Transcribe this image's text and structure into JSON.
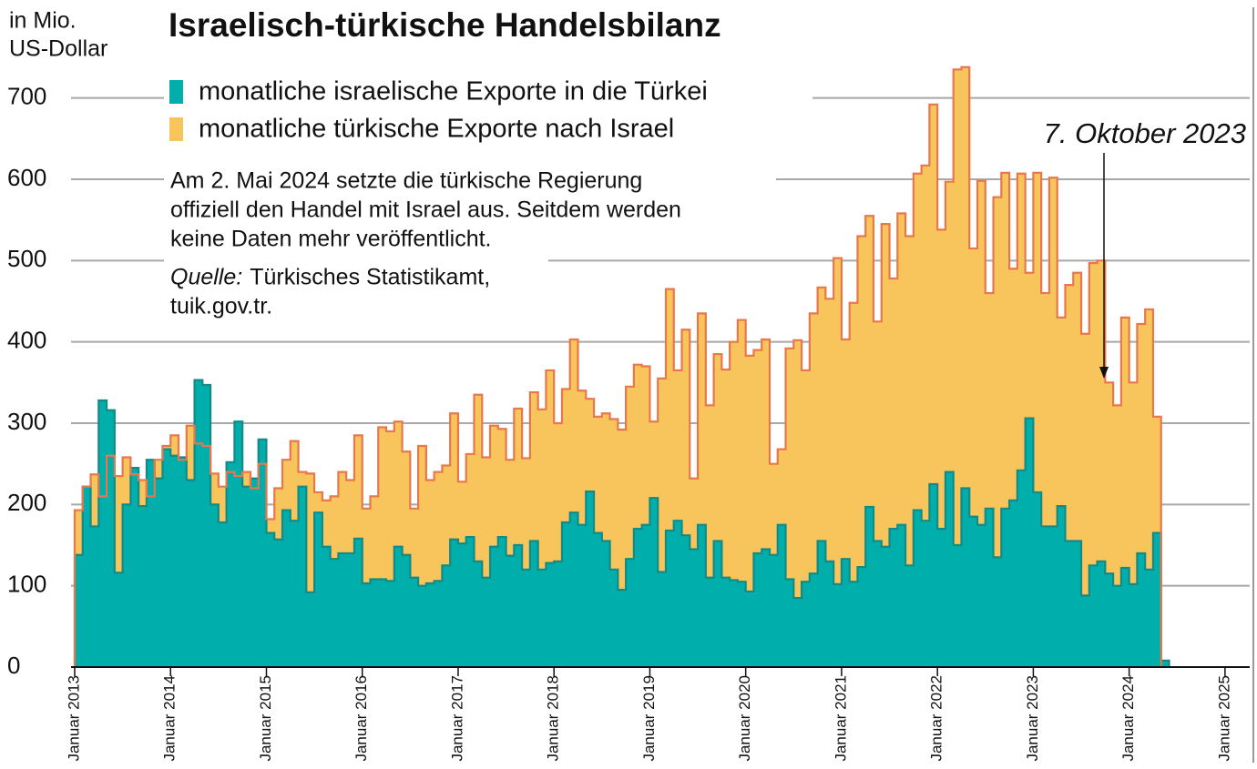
{
  "chart_data": {
    "type": "step-area",
    "title": "Israelisch-türkische Handelsbilanz",
    "ylabel": [
      "in Mio.",
      "US-Dollar"
    ],
    "note": [
      "Am 2. Mai 2024 setzte die türkische Regierung",
      "offiziell den Handel mit Israel aus. Seitdem werden",
      "keine Daten mehr veröffentlicht."
    ],
    "source": {
      "label": "Quelle:",
      "lines": [
        "Türkisches Statistikamt,",
        "tuik.gov.tr."
      ]
    },
    "annotation": "7. Oktober 2023",
    "ylim": [
      0,
      750
    ],
    "yticks": [
      0,
      100,
      200,
      300,
      400,
      500,
      600,
      700
    ],
    "grid": true,
    "categories": [
      "Januar 2013",
      null,
      null,
      null,
      null,
      null,
      null,
      null,
      null,
      null,
      null,
      null,
      "Januar 2014",
      null,
      null,
      null,
      null,
      null,
      null,
      null,
      null,
      null,
      null,
      null,
      "Januar 2015",
      null,
      null,
      null,
      null,
      null,
      null,
      null,
      null,
      null,
      null,
      null,
      "Januar 2016",
      null,
      null,
      null,
      null,
      null,
      null,
      null,
      null,
      null,
      null,
      null,
      "Januar 2017",
      null,
      null,
      null,
      null,
      null,
      null,
      null,
      null,
      null,
      null,
      null,
      "Januar 2018",
      null,
      null,
      null,
      null,
      null,
      null,
      null,
      null,
      null,
      null,
      null,
      "Januar 2019",
      null,
      null,
      null,
      null,
      null,
      null,
      null,
      null,
      null,
      null,
      null,
      "Januar 2020",
      null,
      null,
      null,
      null,
      null,
      null,
      null,
      null,
      null,
      null,
      null,
      "Januar 2021",
      null,
      null,
      null,
      null,
      null,
      null,
      null,
      null,
      null,
      null,
      null,
      "Januar 2022",
      null,
      null,
      null,
      null,
      null,
      null,
      null,
      null,
      null,
      null,
      null,
      "Januar 2023",
      null,
      null,
      null,
      null,
      null,
      null,
      null,
      null,
      null,
      null,
      null,
      "Januar 2024",
      null,
      null,
      null,
      null,
      null,
      null,
      null,
      null,
      null,
      null,
      null,
      "Januar 2025"
    ],
    "series": [
      {
        "name": "monatliche türkische Exporte nach Israel",
        "color": "#f8c45c",
        "line_color": "#e8774c",
        "values": [
          193,
          222,
          237,
          210,
          260,
          235,
          258,
          237,
          230,
          210,
          255,
          272,
          285,
          255,
          297,
          275,
          272,
          238,
          222,
          240,
          235,
          240,
          220,
          250,
          182,
          220,
          255,
          278,
          240,
          238,
          215,
          205,
          210,
          240,
          230,
          285,
          195,
          210,
          295,
          290,
          302,
          265,
          195,
          272,
          230,
          240,
          248,
          312,
          228,
          262,
          335,
          258,
          297,
          293,
          255,
          318,
          257,
          338,
          317,
          365,
          300,
          342,
          403,
          340,
          330,
          308,
          312,
          305,
          292,
          345,
          372,
          370,
          302,
          355,
          465,
          365,
          415,
          232,
          435,
          322,
          385,
          366,
          400,
          427,
          383,
          390,
          403,
          250,
          268,
          392,
          402,
          365,
          435,
          467,
          453,
          503,
          403,
          448,
          530,
          555,
          425,
          545,
          478,
          558,
          530,
          607,
          617,
          692,
          538,
          597,
          735,
          738,
          515,
          598,
          460,
          578,
          608,
          490,
          607,
          485,
          608,
          460,
          602,
          430,
          470,
          485,
          410,
          497,
          500,
          350,
          322,
          430,
          350,
          422,
          440,
          308,
          null,
          null,
          null,
          null,
          null,
          null,
          null,
          null,
          null
        ]
      },
      {
        "name": "monatliche israelische Exporte in die Türkei",
        "color": "#00aeab",
        "line_color": "#138a86",
        "values": [
          138,
          222,
          173,
          328,
          316,
          116,
          200,
          245,
          198,
          255,
          232,
          268,
          260,
          258,
          230,
          353,
          347,
          200,
          178,
          252,
          302,
          222,
          232,
          280,
          165,
          157,
          193,
          180,
          222,
          92,
          190,
          148,
          133,
          140,
          140,
          158,
          103,
          108,
          108,
          106,
          148,
          138,
          110,
          100,
          103,
          106,
          125,
          157,
          152,
          160,
          130,
          110,
          148,
          160,
          137,
          150,
          120,
          155,
          120,
          128,
          130,
          178,
          190,
          175,
          216,
          165,
          155,
          120,
          95,
          133,
          170,
          175,
          208,
          117,
          168,
          180,
          162,
          145,
          175,
          110,
          155,
          110,
          107,
          105,
          93,
          140,
          145,
          138,
          175,
          108,
          85,
          105,
          115,
          155,
          130,
          102,
          133,
          105,
          123,
          197,
          155,
          148,
          170,
          175,
          125,
          193,
          180,
          225,
          170,
          240,
          150,
          220,
          185,
          175,
          195,
          135,
          195,
          205,
          242,
          306,
          215,
          173,
          173,
          198,
          155,
          155,
          88,
          125,
          130,
          115,
          100,
          122,
          102,
          140,
          120,
          165,
          8,
          null,
          null,
          null,
          null,
          null,
          null,
          null,
          null
        ]
      }
    ]
  }
}
